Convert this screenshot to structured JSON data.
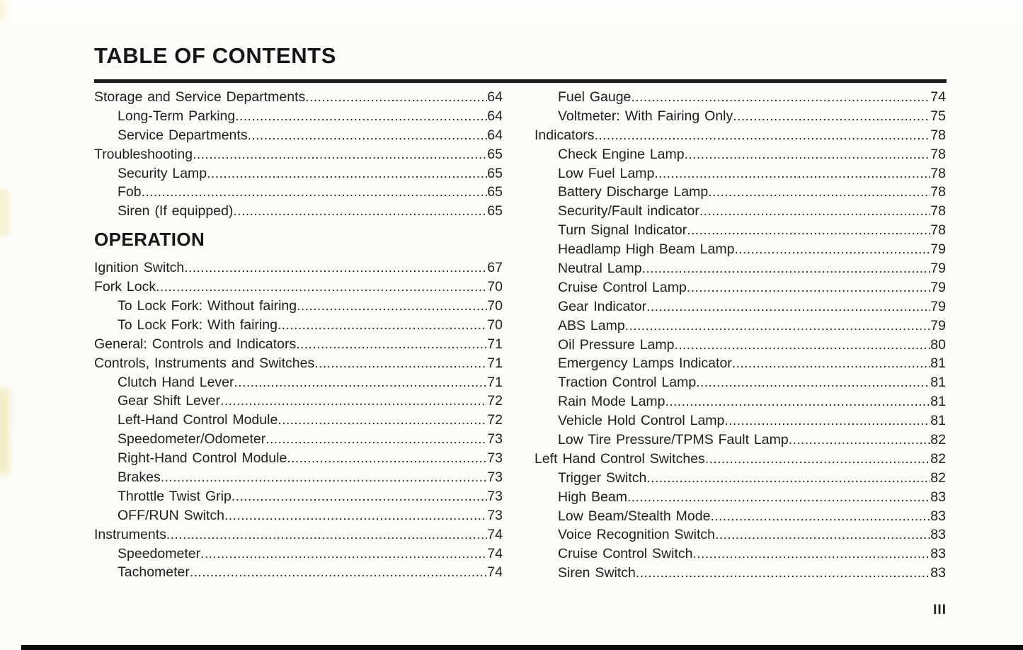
{
  "title": "TABLE OF CONTENTS",
  "folio": "III",
  "toc": {
    "columns": [
      {
        "name": "left",
        "items": [
          {
            "kind": "entry",
            "level": 1,
            "label": "Storage and Service Departments",
            "page": "64"
          },
          {
            "kind": "entry",
            "level": 2,
            "label": "Long-Term Parking",
            "page": "64"
          },
          {
            "kind": "entry",
            "level": 2,
            "label": "Service Departments",
            "page": "64"
          },
          {
            "kind": "entry",
            "level": 1,
            "label": "Troubleshooting",
            "page": "65"
          },
          {
            "kind": "entry",
            "level": 2,
            "label": "Security Lamp",
            "page": "65"
          },
          {
            "kind": "entry",
            "level": 2,
            "label": "Fob",
            "page": "65"
          },
          {
            "kind": "entry",
            "level": 2,
            "label": "Siren (If equipped)",
            "page": "65"
          },
          {
            "kind": "heading",
            "label": "OPERATION"
          },
          {
            "kind": "entry",
            "level": 1,
            "label": "Ignition Switch",
            "page": "67"
          },
          {
            "kind": "entry",
            "level": 1,
            "label": "Fork Lock",
            "page": "70"
          },
          {
            "kind": "entry",
            "level": 2,
            "label": "To Lock Fork: Without fairing",
            "page": "70"
          },
          {
            "kind": "entry",
            "level": 2,
            "label": "To Lock Fork: With fairing",
            "page": "70"
          },
          {
            "kind": "entry",
            "level": 1,
            "label": "General: Controls and Indicators",
            "page": "71"
          },
          {
            "kind": "entry",
            "level": 1,
            "label": "Controls, Instruments and Switches",
            "page": "71"
          },
          {
            "kind": "entry",
            "level": 2,
            "label": "Clutch Hand Lever",
            "page": "71"
          },
          {
            "kind": "entry",
            "level": 2,
            "label": "Gear Shift Lever",
            "page": "72"
          },
          {
            "kind": "entry",
            "level": 2,
            "label": "Left-Hand Control Module",
            "page": "72"
          },
          {
            "kind": "entry",
            "level": 2,
            "label": "Speedometer/Odometer",
            "page": "73"
          },
          {
            "kind": "entry",
            "level": 2,
            "label": "Right-Hand Control Module",
            "page": "73"
          },
          {
            "kind": "entry",
            "level": 2,
            "label": "Brakes",
            "page": "73"
          },
          {
            "kind": "entry",
            "level": 2,
            "label": "Throttle Twist Grip",
            "page": "73"
          },
          {
            "kind": "entry",
            "level": 2,
            "label": "OFF/RUN Switch",
            "page": "73"
          },
          {
            "kind": "entry",
            "level": 1,
            "label": "Instruments",
            "page": "74"
          },
          {
            "kind": "entry",
            "level": 2,
            "label": "Speedometer",
            "page": "74"
          },
          {
            "kind": "entry",
            "level": 2,
            "label": "Tachometer",
            "page": "74"
          }
        ]
      },
      {
        "name": "right",
        "items": [
          {
            "kind": "entry",
            "level": 2,
            "label": "Fuel Gauge",
            "page": "74"
          },
          {
            "kind": "entry",
            "level": 2,
            "label": "Voltmeter: With Fairing Only",
            "page": "75"
          },
          {
            "kind": "entry",
            "level": 1,
            "label": "Indicators",
            "page": "78"
          },
          {
            "kind": "entry",
            "level": 2,
            "label": "Check Engine Lamp",
            "page": "78"
          },
          {
            "kind": "entry",
            "level": 2,
            "label": "Low Fuel Lamp",
            "page": "78"
          },
          {
            "kind": "entry",
            "level": 2,
            "label": "Battery Discharge Lamp",
            "page": "78"
          },
          {
            "kind": "entry",
            "level": 2,
            "label": "Security/Fault indicator",
            "page": "78"
          },
          {
            "kind": "entry",
            "level": 2,
            "label": "Turn Signal Indicator",
            "page": "78"
          },
          {
            "kind": "entry",
            "level": 2,
            "label": "Headlamp High Beam Lamp",
            "page": "79"
          },
          {
            "kind": "entry",
            "level": 2,
            "label": "Neutral Lamp",
            "page": "79"
          },
          {
            "kind": "entry",
            "level": 2,
            "label": "Cruise Control Lamp",
            "page": "79"
          },
          {
            "kind": "entry",
            "level": 2,
            "label": "Gear Indicator",
            "page": "79"
          },
          {
            "kind": "entry",
            "level": 2,
            "label": "ABS Lamp",
            "page": "79"
          },
          {
            "kind": "entry",
            "level": 2,
            "label": "Oil Pressure Lamp",
            "page": "80"
          },
          {
            "kind": "entry",
            "level": 2,
            "label": "Emergency Lamps Indicator",
            "page": "81"
          },
          {
            "kind": "entry",
            "level": 2,
            "label": "Traction Control Lamp",
            "page": "81"
          },
          {
            "kind": "entry",
            "level": 2,
            "label": "Rain Mode Lamp",
            "page": "81"
          },
          {
            "kind": "entry",
            "level": 2,
            "label": "Vehicle Hold Control Lamp",
            "page": "81"
          },
          {
            "kind": "entry",
            "level": 2,
            "label": "Low Tire Pressure/TPMS Fault Lamp",
            "page": "82"
          },
          {
            "kind": "entry",
            "level": 1,
            "label": "Left Hand Control Switches",
            "page": "82"
          },
          {
            "kind": "entry",
            "level": 2,
            "label": "Trigger Switch",
            "page": "82"
          },
          {
            "kind": "entry",
            "level": 2,
            "label": "High Beam",
            "page": "83"
          },
          {
            "kind": "entry",
            "level": 2,
            "label": "Low Beam/Stealth Mode",
            "page": "83"
          },
          {
            "kind": "entry",
            "level": 2,
            "label": "Voice Recognition Switch",
            "page": "83"
          },
          {
            "kind": "entry",
            "level": 2,
            "label": "Cruise Control Switch",
            "page": "83"
          },
          {
            "kind": "entry",
            "level": 2,
            "label": "Siren Switch",
            "page": "83"
          }
        ]
      }
    ]
  }
}
